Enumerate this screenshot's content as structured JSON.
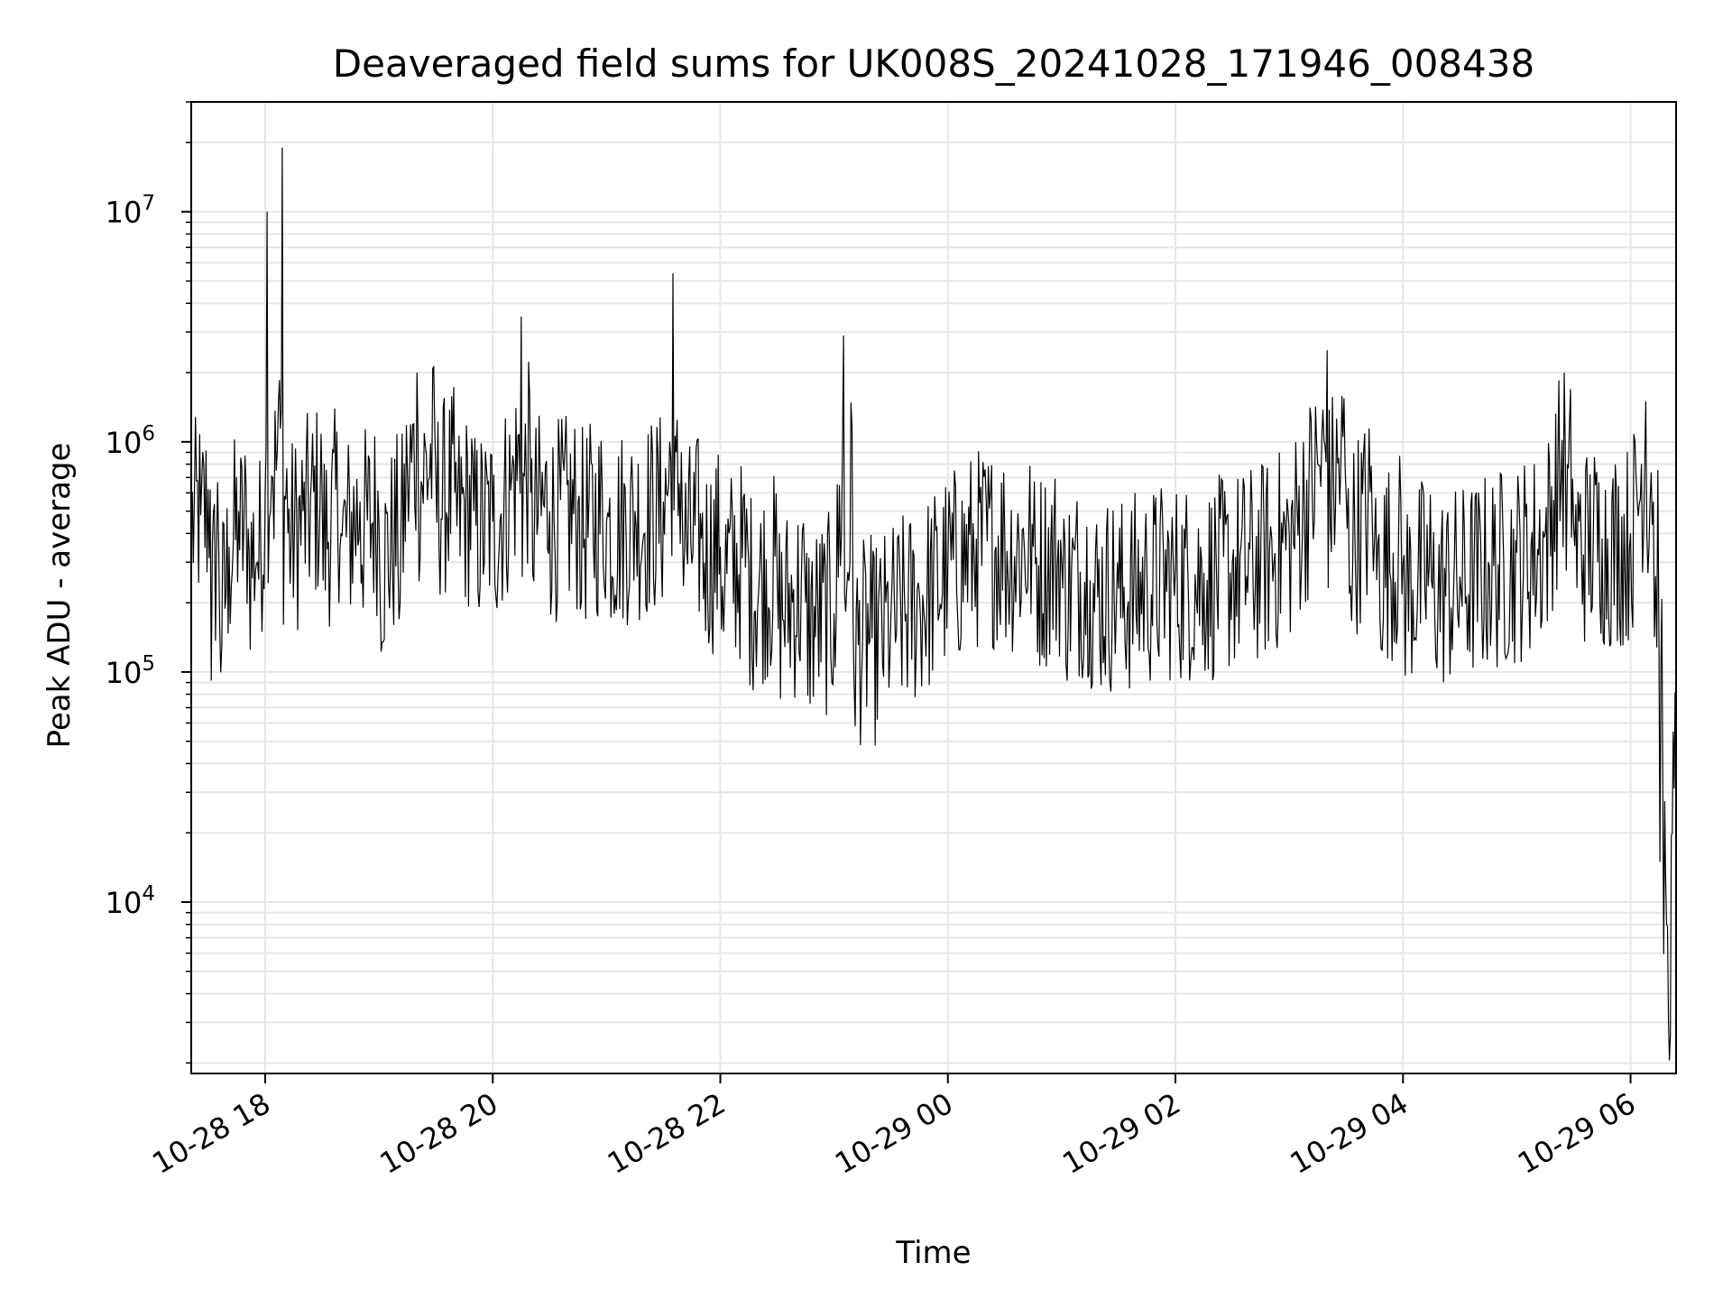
{
  "chart_data": {
    "type": "line",
    "title": "Deaveraged field sums for UK008S_20241028_171946_008438",
    "xlabel": "Time",
    "ylabel": "Peak ADU - average",
    "y_scale": "log",
    "ylim": [
      1800,
      30000000
    ],
    "xlim": [
      "2024-10-28 17:21",
      "2024-10-29 06:24"
    ],
    "grid": true,
    "x_ticks": [
      {
        "label": "10-28 18",
        "value": "2024-10-28 18:00"
      },
      {
        "label": "10-28 20",
        "value": "2024-10-28 20:00"
      },
      {
        "label": "10-28 22",
        "value": "2024-10-28 22:00"
      },
      {
        "label": "10-29 00",
        "value": "2024-10-29 00:00"
      },
      {
        "label": "10-29 02",
        "value": "2024-10-29 02:00"
      },
      {
        "label": "10-29 04",
        "value": "2024-10-29 04:00"
      },
      {
        "label": "10-29 06",
        "value": "2024-10-29 06:00"
      }
    ],
    "y_ticks": [
      {
        "base": "10",
        "exp": "4",
        "value": 10000
      },
      {
        "base": "10",
        "exp": "5",
        "value": 100000
      },
      {
        "base": "10",
        "exp": "6",
        "value": 1000000
      },
      {
        "base": "10",
        "exp": "7",
        "value": 10000000
      }
    ],
    "series": [
      {
        "color": "#000000",
        "points": [
          [
            "2024-10-28 17:21",
            550000
          ],
          [
            "2024-10-28 17:26",
            480000
          ],
          [
            "2024-10-28 17:31",
            620000
          ],
          [
            "2024-10-28 17:36",
            160000
          ],
          [
            "2024-10-28 17:41",
            350000
          ],
          [
            "2024-10-28 17:46",
            500000
          ],
          [
            "2024-10-28 17:51",
            420000
          ],
          [
            "2024-10-28 17:56",
            300000
          ],
          [
            "2024-10-28 18:00",
            600000
          ],
          [
            "2024-10-28 18:01",
            10000000
          ],
          [
            "2024-10-28 18:04",
            700000
          ],
          [
            "2024-10-28 18:07",
            1500000
          ],
          [
            "2024-10-28 18:09",
            19000000
          ],
          [
            "2024-10-28 18:12",
            400000
          ],
          [
            "2024-10-28 18:20",
            500000
          ],
          [
            "2024-10-28 18:30",
            650000
          ],
          [
            "2024-10-28 18:40",
            400000
          ],
          [
            "2024-10-28 18:50",
            550000
          ],
          [
            "2024-10-28 19:00",
            450000
          ],
          [
            "2024-10-28 19:10",
            300000
          ],
          [
            "2024-10-28 19:15",
            750000
          ],
          [
            "2024-10-28 19:20",
            2000000
          ],
          [
            "2024-10-28 19:30",
            700000
          ],
          [
            "2024-10-28 19:40",
            600000
          ],
          [
            "2024-10-28 19:50",
            500000
          ],
          [
            "2024-10-28 20:00",
            450000
          ],
          [
            "2024-10-28 20:10",
            700000
          ],
          [
            "2024-10-28 20:15",
            3500000
          ],
          [
            "2024-10-28 20:20",
            600000
          ],
          [
            "2024-10-28 20:30",
            500000
          ],
          [
            "2024-10-28 20:45",
            550000
          ],
          [
            "2024-10-28 21:00",
            450000
          ],
          [
            "2024-10-28 21:15",
            500000
          ],
          [
            "2024-10-28 21:30",
            550000
          ],
          [
            "2024-10-28 21:35",
            5400000
          ],
          [
            "2024-10-28 21:40",
            450000
          ],
          [
            "2024-10-28 21:50",
            380000
          ],
          [
            "2024-10-28 22:00",
            350000
          ],
          [
            "2024-10-28 22:15",
            300000
          ],
          [
            "2024-10-28 22:30",
            250000
          ],
          [
            "2024-10-28 22:45",
            200000
          ],
          [
            "2024-10-28 23:00",
            180000
          ],
          [
            "2024-10-28 23:05",
            2900000
          ],
          [
            "2024-10-28 23:10",
            160000
          ],
          [
            "2024-10-28 23:20",
            140000
          ],
          [
            "2024-10-28 23:30",
            180000
          ],
          [
            "2024-10-28 23:45",
            220000
          ],
          [
            "2024-10-29 00:00",
            300000
          ],
          [
            "2024-10-29 00:15",
            380000
          ],
          [
            "2024-10-29 00:30",
            400000
          ],
          [
            "2024-10-29 00:45",
            350000
          ],
          [
            "2024-10-29 01:00",
            300000
          ],
          [
            "2024-10-29 01:15",
            250000
          ],
          [
            "2024-10-29 01:30",
            230000
          ],
          [
            "2024-10-29 01:45",
            260000
          ],
          [
            "2024-10-29 02:00",
            280000
          ],
          [
            "2024-10-29 02:15",
            270000
          ],
          [
            "2024-10-29 02:30",
            300000
          ],
          [
            "2024-10-29 02:45",
            330000
          ],
          [
            "2024-10-29 03:00",
            400000
          ],
          [
            "2024-10-29 03:15",
            800000
          ],
          [
            "2024-10-29 03:20",
            2500000
          ],
          [
            "2024-10-29 03:30",
            600000
          ],
          [
            "2024-10-29 03:45",
            380000
          ],
          [
            "2024-10-29 04:00",
            300000
          ],
          [
            "2024-10-29 04:15",
            250000
          ],
          [
            "2024-10-29 04:30",
            260000
          ],
          [
            "2024-10-29 04:45",
            300000
          ],
          [
            "2024-10-29 05:00",
            330000
          ],
          [
            "2024-10-29 05:15",
            400000
          ],
          [
            "2024-10-29 05:25",
            2000000
          ],
          [
            "2024-10-29 05:30",
            420000
          ],
          [
            "2024-10-29 05:45",
            380000
          ],
          [
            "2024-10-29 06:00",
            400000
          ],
          [
            "2024-10-29 06:08",
            1500000
          ],
          [
            "2024-10-29 06:12",
            550000
          ],
          [
            "2024-10-29 06:15",
            120000
          ],
          [
            "2024-10-29 06:17",
            30000
          ],
          [
            "2024-10-29 06:19",
            8000
          ],
          [
            "2024-10-29 06:20",
            3000
          ],
          [
            "2024-10-29 06:22",
            20000
          ],
          [
            "2024-10-29 06:24",
            50000
          ]
        ]
      }
    ]
  }
}
